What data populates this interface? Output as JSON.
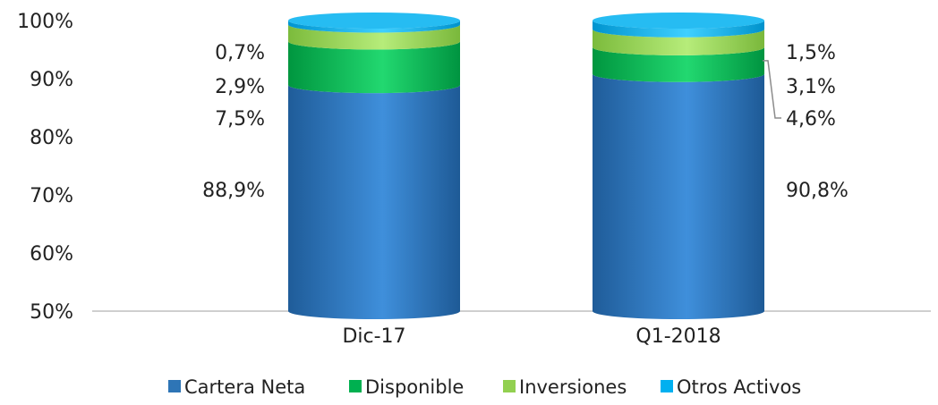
{
  "chart_data": {
    "type": "bar",
    "stacked": true,
    "style": "3d-cylinder",
    "categories": [
      "Dic-17",
      "Q1-2018"
    ],
    "ylim": [
      0.5,
      1.0
    ],
    "yticks": [
      0.5,
      0.6,
      0.7,
      0.8,
      0.9,
      1.0
    ],
    "ytick_labels": [
      "50%",
      "60%",
      "70%",
      "80%",
      "90%",
      "100%"
    ],
    "series": [
      {
        "name": "Cartera Neta",
        "color": "#2E75B6",
        "values": [
          0.889,
          0.908
        ],
        "labels": [
          "88,9%",
          "90,8%"
        ]
      },
      {
        "name": "Disponible",
        "color": "#00B050",
        "values": [
          0.075,
          0.046
        ],
        "labels": [
          "7,5%",
          "4,6%"
        ]
      },
      {
        "name": "Inversiones",
        "color": "#92D050",
        "values": [
          0.029,
          0.031
        ],
        "labels": [
          "2,9%",
          "3,1%"
        ]
      },
      {
        "name": "Otros Activos",
        "color": "#00B0F0",
        "values": [
          0.007,
          0.015
        ],
        "labels": [
          "0,7%",
          "1,5%"
        ]
      }
    ],
    "legend_position": "bottom",
    "grid": false
  }
}
